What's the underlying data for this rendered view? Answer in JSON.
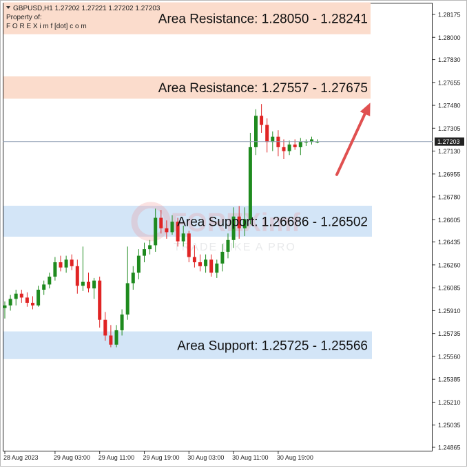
{
  "header": {
    "symbol_line": "GBPUSD,H1  1.27202 1.27221 1.27202 1.27203",
    "property_label": "Property of:",
    "owner": "F O R E X i m f [dot] c o m"
  },
  "watermark": {
    "brand": "FOREXimf",
    "tagline": "TRADE LIKE A PRO"
  },
  "colors": {
    "bull": "#1e8a1e",
    "bear": "#e02424",
    "resistance_fill": "#fbdccc",
    "support_fill": "#d3e5f7",
    "arrow": "#e05050",
    "current_price_line": "#8c9bb0"
  },
  "chart_data": {
    "type": "candlestick",
    "timeframe": "H1",
    "symbol": "GBPUSD",
    "current_price": "1.27203",
    "y_ticks": [
      "1.28175",
      "1.28000",
      "1.27830",
      "1.27655",
      "1.27480",
      "1.27305",
      "1.27130",
      "1.26955",
      "1.26780",
      "1.26605",
      "1.26435",
      "1.26260",
      "1.26085",
      "1.25910",
      "1.25735",
      "1.25560",
      "1.25385",
      "1.25210",
      "1.25035",
      "1.24865"
    ],
    "ylim": [
      1.2483,
      1.2838
    ],
    "x_ticks": [
      "28 Aug 2023",
      "29 Aug 03:00",
      "29 Aug 11:00",
      "29 Aug 19:00",
      "30 Aug 03:00",
      "30 Aug 11:00",
      "30 Aug 19:00"
    ],
    "x_tick_bar_index": [
      0,
      9,
      17,
      25,
      33,
      41,
      49
    ],
    "zones": [
      {
        "kind": "resistance",
        "label": "Area Resistance: 1.28050 - 1.28241",
        "low": 1.2805,
        "high": 1.28241
      },
      {
        "kind": "resistance",
        "label": "Area Resistance: 1.27557 - 1.27675",
        "low": 1.27557,
        "high": 1.27675
      },
      {
        "kind": "support",
        "label": "Area Support: 1.26686 - 1.26502",
        "low": 1.26502,
        "high": 1.26686
      },
      {
        "kind": "support",
        "label": "Area Support: 1.25725 - 1.25566",
        "low": 1.25566,
        "high": 1.25725
      }
    ],
    "arrow": {
      "from_bar": 59.5,
      "from_price": 1.2695,
      "to_bar": 65.5,
      "to_price": 1.275
    },
    "candles": [
      {
        "o": 1.2593,
        "h": 1.2598,
        "l": 1.2585,
        "c": 1.2595
      },
      {
        "o": 1.2595,
        "h": 1.2603,
        "l": 1.2591,
        "c": 1.26
      },
      {
        "o": 1.26,
        "h": 1.2607,
        "l": 1.2595,
        "c": 1.2604
      },
      {
        "o": 1.2604,
        "h": 1.2607,
        "l": 1.2597,
        "c": 1.2601
      },
      {
        "o": 1.2601,
        "h": 1.2605,
        "l": 1.2594,
        "c": 1.2597
      },
      {
        "o": 1.2597,
        "h": 1.2602,
        "l": 1.2592,
        "c": 1.2595
      },
      {
        "o": 1.2595,
        "h": 1.261,
        "l": 1.2594,
        "c": 1.2607
      },
      {
        "o": 1.2607,
        "h": 1.2614,
        "l": 1.2603,
        "c": 1.2611
      },
      {
        "o": 1.2611,
        "h": 1.262,
        "l": 1.2608,
        "c": 1.2617
      },
      {
        "o": 1.2617,
        "h": 1.2632,
        "l": 1.2614,
        "c": 1.2628
      },
      {
        "o": 1.2628,
        "h": 1.2633,
        "l": 1.2621,
        "c": 1.2624
      },
      {
        "o": 1.2624,
        "h": 1.2633,
        "l": 1.262,
        "c": 1.263
      },
      {
        "o": 1.263,
        "h": 1.2634,
        "l": 1.2622,
        "c": 1.2625
      },
      {
        "o": 1.2625,
        "h": 1.263,
        "l": 1.2604,
        "c": 1.261
      },
      {
        "o": 1.261,
        "h": 1.264,
        "l": 1.2606,
        "c": 1.2613
      },
      {
        "o": 1.2613,
        "h": 1.262,
        "l": 1.2605,
        "c": 1.2608
      },
      {
        "o": 1.2608,
        "h": 1.2616,
        "l": 1.26,
        "c": 1.2614
      },
      {
        "o": 1.2614,
        "h": 1.2617,
        "l": 1.2578,
        "c": 1.2584
      },
      {
        "o": 1.2584,
        "h": 1.259,
        "l": 1.2568,
        "c": 1.2572
      },
      {
        "o": 1.2572,
        "h": 1.258,
        "l": 1.2563,
        "c": 1.2565
      },
      {
        "o": 1.2565,
        "h": 1.258,
        "l": 1.2563,
        "c": 1.2576
      },
      {
        "o": 1.2576,
        "h": 1.2592,
        "l": 1.2572,
        "c": 1.2588
      },
      {
        "o": 1.2588,
        "h": 1.264,
        "l": 1.2584,
        "c": 1.2612
      },
      {
        "o": 1.2612,
        "h": 1.2625,
        "l": 1.2607,
        "c": 1.262
      },
      {
        "o": 1.262,
        "h": 1.2638,
        "l": 1.2615,
        "c": 1.2633
      },
      {
        "o": 1.2633,
        "h": 1.2643,
        "l": 1.2628,
        "c": 1.2638
      },
      {
        "o": 1.2638,
        "h": 1.2645,
        "l": 1.2634,
        "c": 1.2641
      },
      {
        "o": 1.2641,
        "h": 1.2669,
        "l": 1.2636,
        "c": 1.2662
      },
      {
        "o": 1.2662,
        "h": 1.2668,
        "l": 1.265,
        "c": 1.2654
      },
      {
        "o": 1.2654,
        "h": 1.266,
        "l": 1.2646,
        "c": 1.2651
      },
      {
        "o": 1.2651,
        "h": 1.2664,
        "l": 1.2649,
        "c": 1.2659
      },
      {
        "o": 1.2659,
        "h": 1.2662,
        "l": 1.264,
        "c": 1.2644
      },
      {
        "o": 1.2644,
        "h": 1.2656,
        "l": 1.264,
        "c": 1.265
      },
      {
        "o": 1.265,
        "h": 1.2652,
        "l": 1.2628,
        "c": 1.2632
      },
      {
        "o": 1.2632,
        "h": 1.2641,
        "l": 1.2624,
        "c": 1.2628
      },
      {
        "o": 1.2628,
        "h": 1.2634,
        "l": 1.2621,
        "c": 1.2625
      },
      {
        "o": 1.2625,
        "h": 1.2634,
        "l": 1.262,
        "c": 1.263
      },
      {
        "o": 1.263,
        "h": 1.2634,
        "l": 1.2617,
        "c": 1.262
      },
      {
        "o": 1.262,
        "h": 1.263,
        "l": 1.2616,
        "c": 1.2627
      },
      {
        "o": 1.2627,
        "h": 1.2642,
        "l": 1.2621,
        "c": 1.2636
      },
      {
        "o": 1.2636,
        "h": 1.265,
        "l": 1.2631,
        "c": 1.2645
      },
      {
        "o": 1.2645,
        "h": 1.267,
        "l": 1.2639,
        "c": 1.2663
      },
      {
        "o": 1.2663,
        "h": 1.2671,
        "l": 1.2646,
        "c": 1.2654
      },
      {
        "o": 1.2654,
        "h": 1.267,
        "l": 1.2648,
        "c": 1.2661
      },
      {
        "o": 1.2661,
        "h": 1.2727,
        "l": 1.2657,
        "c": 1.2716
      },
      {
        "o": 1.2716,
        "h": 1.2745,
        "l": 1.271,
        "c": 1.274
      },
      {
        "o": 1.274,
        "h": 1.2749,
        "l": 1.2727,
        "c": 1.2733
      },
      {
        "o": 1.2733,
        "h": 1.2738,
        "l": 1.2712,
        "c": 1.272
      },
      {
        "o": 1.272,
        "h": 1.2728,
        "l": 1.2713,
        "c": 1.2724
      },
      {
        "o": 1.2724,
        "h": 1.2729,
        "l": 1.2709,
        "c": 1.2716
      },
      {
        "o": 1.2716,
        "h": 1.2722,
        "l": 1.2707,
        "c": 1.2713
      },
      {
        "o": 1.2713,
        "h": 1.2721,
        "l": 1.271,
        "c": 1.2718
      },
      {
        "o": 1.2718,
        "h": 1.2722,
        "l": 1.2714,
        "c": 1.2716
      },
      {
        "o": 1.2716,
        "h": 1.2723,
        "l": 1.271,
        "c": 1.272
      },
      {
        "o": 1.272,
        "h": 1.2722,
        "l": 1.2717,
        "c": 1.272
      },
      {
        "o": 1.272,
        "h": 1.2724,
        "l": 1.2718,
        "c": 1.2722
      },
      {
        "o": 1.272,
        "h": 1.2722,
        "l": 1.2719,
        "c": 1.272
      }
    ]
  }
}
